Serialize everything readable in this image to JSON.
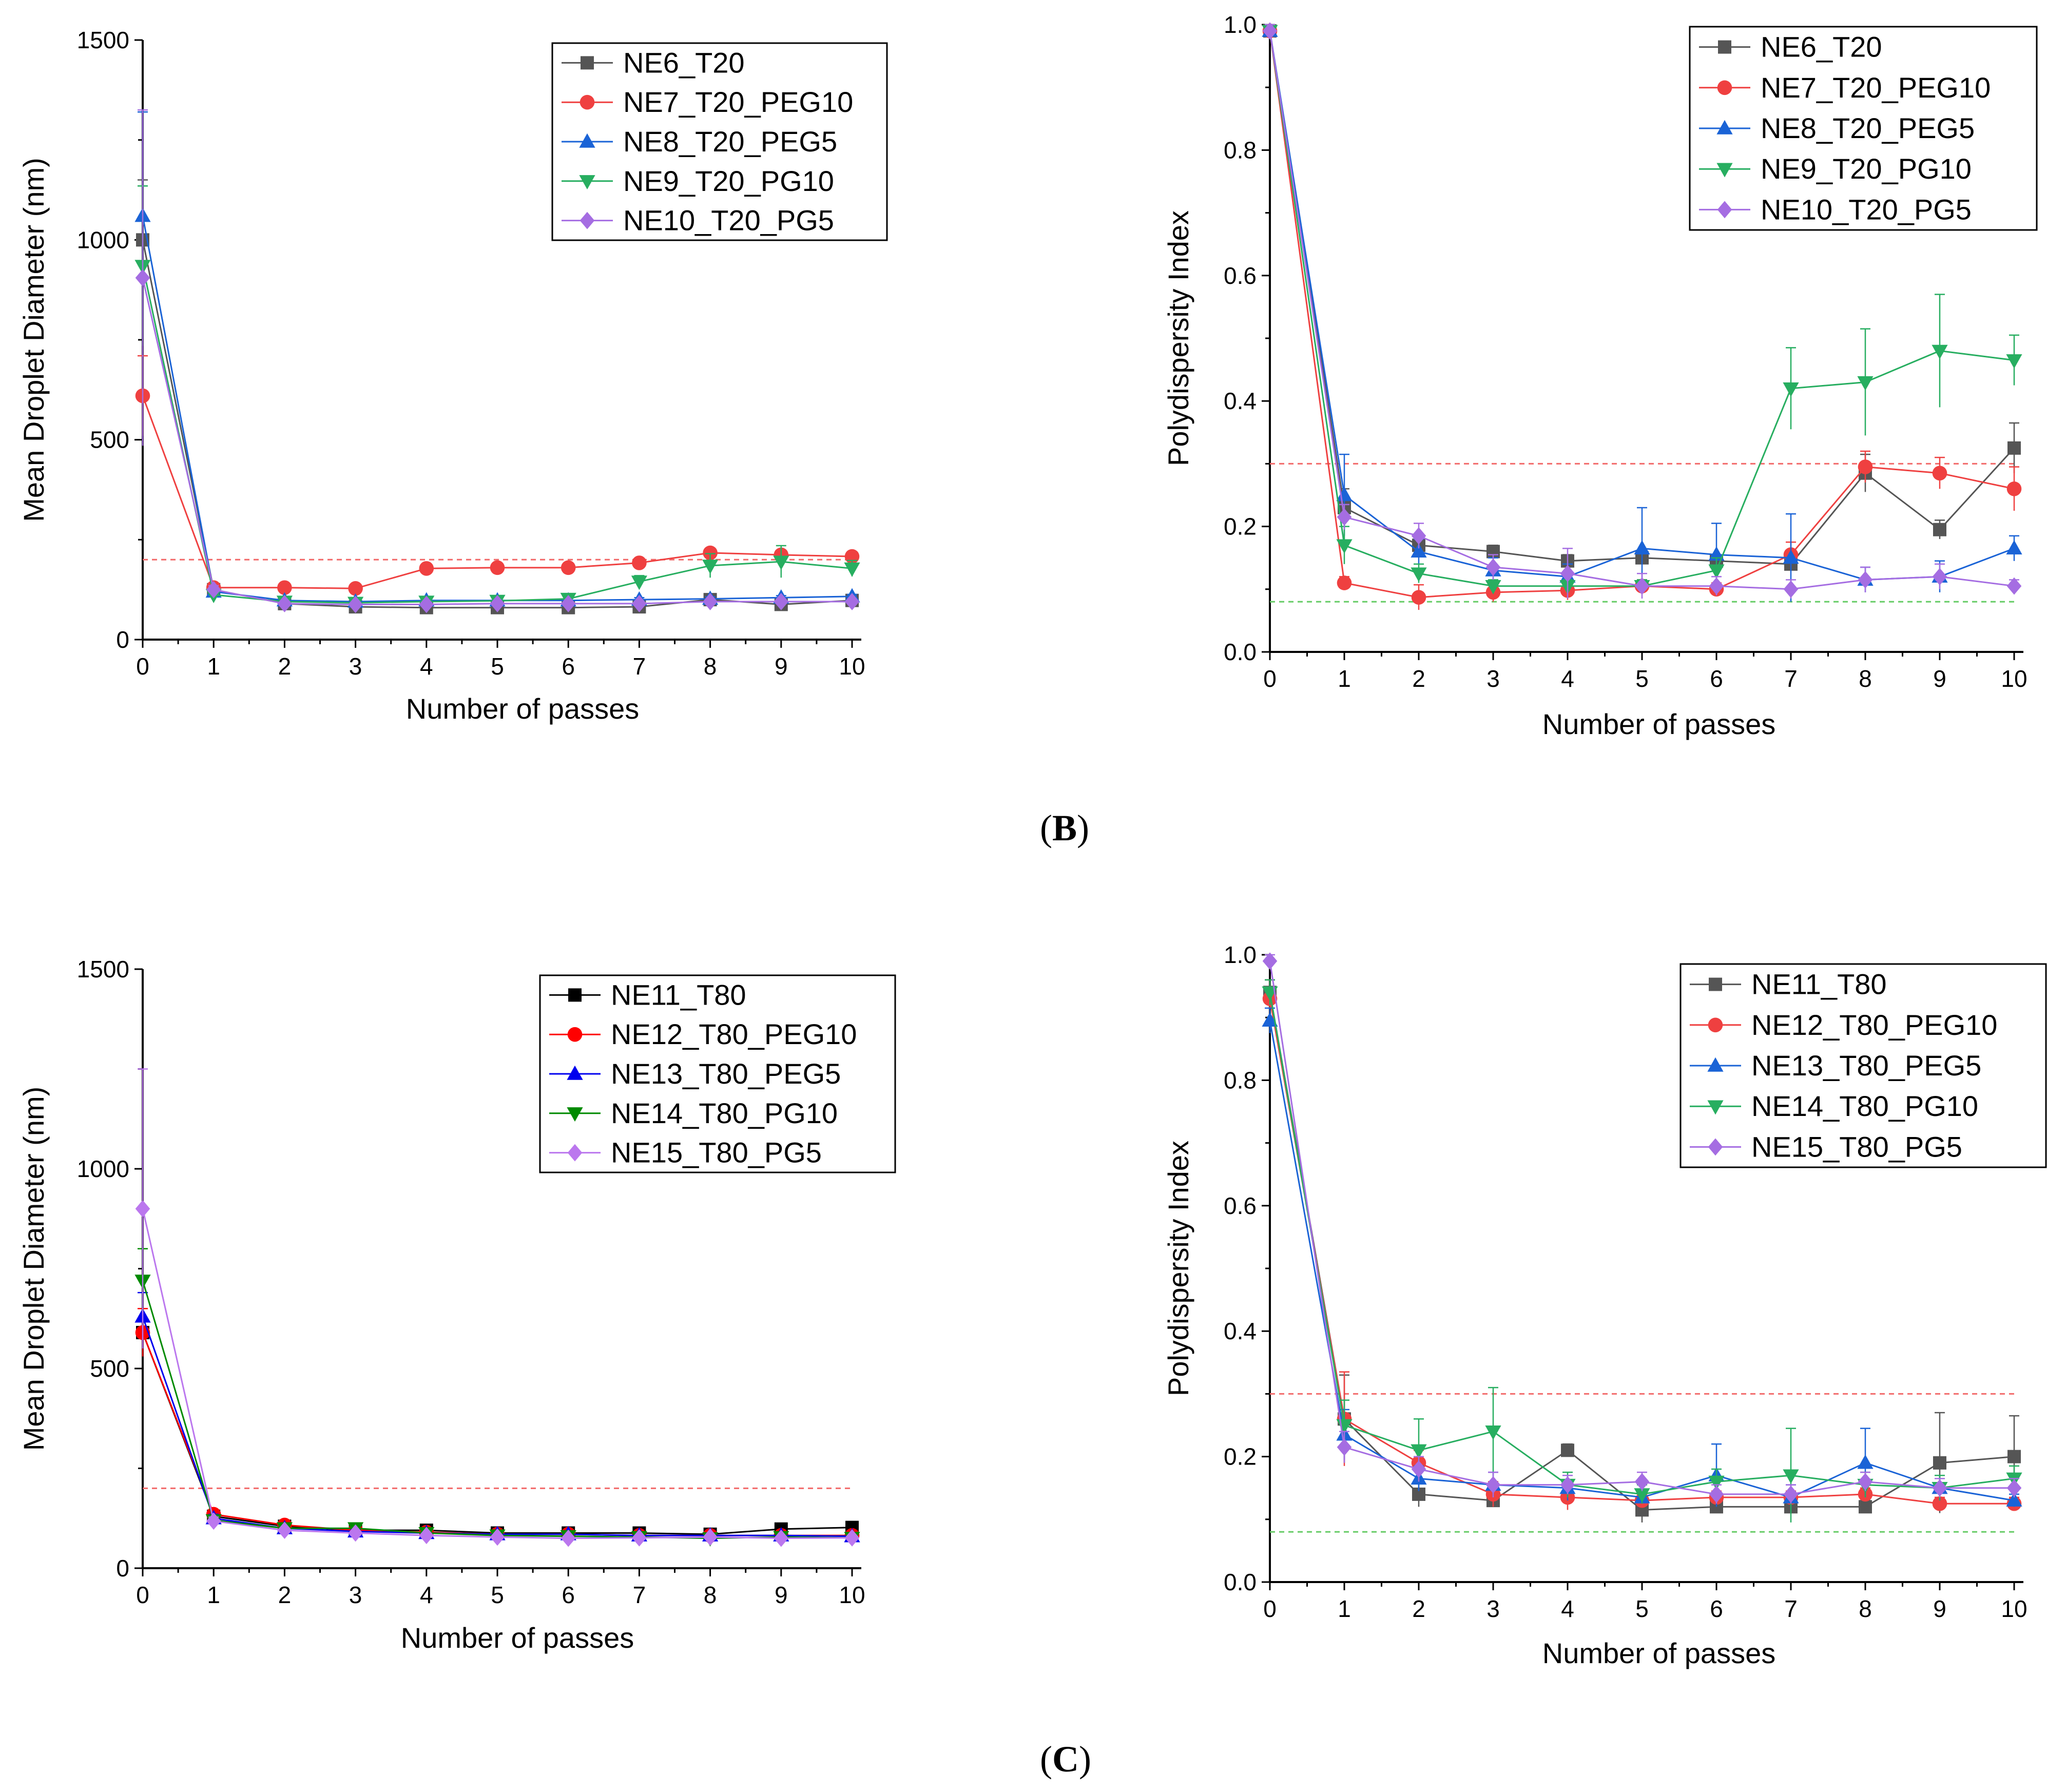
{
  "panel_labels": {
    "b": "B",
    "c": "C"
  },
  "chart_data": [
    {
      "id": "b-left",
      "type": "line",
      "ylabel": "Mean Droplet Diameter (nm)",
      "xlabel": "Number of passes",
      "xlim": [
        0,
        10
      ],
      "ylim": [
        0,
        1500
      ],
      "xticks": [
        0,
        1,
        2,
        3,
        4,
        5,
        6,
        7,
        8,
        9,
        10
      ],
      "yticks": [
        0,
        500,
        1000,
        1500
      ],
      "ytick_labels": [
        "0",
        "500",
        "1000",
        "1500"
      ],
      "reference_lines": [
        {
          "y": 200,
          "color": "#f26b6b"
        }
      ],
      "legend_position": "top-right",
      "x": [
        0,
        1,
        2,
        3,
        4,
        5,
        6,
        7,
        8,
        9,
        10
      ],
      "series": [
        {
          "name": "NE6_T20",
          "color": "#555555",
          "marker": "square",
          "values": [
            1000,
            125,
            90,
            82,
            80,
            80,
            80,
            82,
            100,
            88,
            98
          ],
          "errors": [
            150,
            10,
            5,
            5,
            5,
            5,
            5,
            5,
            5,
            5,
            5
          ]
        },
        {
          "name": "NE7_T20_PEG10",
          "color": "#ef4040",
          "marker": "circle",
          "values": [
            610,
            130,
            130,
            128,
            178,
            180,
            180,
            192,
            217,
            212,
            208
          ],
          "errors": [
            100,
            10,
            8,
            8,
            10,
            10,
            10,
            10,
            10,
            10,
            10
          ]
        },
        {
          "name": "NE8_T20_PEG5",
          "color": "#1a63d6",
          "marker": "triangle-up",
          "values": [
            1060,
            120,
            98,
            95,
            98,
            98,
            98,
            100,
            102,
            105,
            108
          ],
          "errors": [
            260,
            10,
            5,
            5,
            5,
            5,
            5,
            5,
            5,
            5,
            5
          ]
        },
        {
          "name": "NE9_T20_PG10",
          "color": "#27ae60",
          "marker": "triangle-down",
          "values": [
            935,
            112,
            95,
            92,
            95,
            97,
            102,
            145,
            185,
            195,
            178
          ],
          "errors": [
            200,
            10,
            5,
            5,
            5,
            5,
            10,
            15,
            30,
            40,
            20
          ]
        },
        {
          "name": "NE10_T20_PG5",
          "color": "#a56de2",
          "marker": "diamond",
          "values": [
            905,
            125,
            90,
            88,
            88,
            90,
            90,
            90,
            95,
            95,
            95
          ],
          "errors": [
            420,
            10,
            5,
            5,
            5,
            5,
            5,
            5,
            5,
            5,
            5
          ]
        }
      ]
    },
    {
      "id": "b-right",
      "type": "line",
      "ylabel": "Polydispersity Index",
      "xlabel": "Number of passes",
      "xlim": [
        0,
        10
      ],
      "ylim": [
        0,
        1.0
      ],
      "xticks": [
        0,
        1,
        2,
        3,
        4,
        5,
        6,
        7,
        8,
        9,
        10
      ],
      "yticks": [
        0,
        0.2,
        0.4,
        0.6,
        0.8,
        1.0
      ],
      "ytick_labels": [
        "0.0",
        "0.2",
        "0.4",
        "0.6",
        "0.8",
        "1.0"
      ],
      "reference_lines": [
        {
          "y": 0.3,
          "color": "#f26b6b"
        },
        {
          "y": 0.08,
          "color": "#66cc66"
        }
      ],
      "legend_position": "top-right",
      "x": [
        0,
        1,
        2,
        3,
        4,
        5,
        6,
        7,
        8,
        9,
        10
      ],
      "series": [
        {
          "name": "NE6_T20",
          "color": "#555555",
          "marker": "square",
          "values": [
            0.99,
            0.23,
            0.17,
            0.16,
            0.145,
            0.15,
            0.145,
            0.14,
            0.285,
            0.195,
            0.325
          ],
          "errors": [
            0.01,
            0.03,
            0.01,
            0.01,
            0.01,
            0.01,
            0.01,
            0.01,
            0.03,
            0.015,
            0.04
          ]
        },
        {
          "name": "NE7_T20_PEG10",
          "color": "#ef4040",
          "marker": "circle",
          "values": [
            0.99,
            0.11,
            0.087,
            0.095,
            0.098,
            0.105,
            0.1,
            0.155,
            0.295,
            0.285,
            0.26
          ],
          "errors": [
            0.01,
            0.01,
            0.02,
            0.015,
            0.015,
            0.01,
            0.01,
            0.02,
            0.025,
            0.025,
            0.035
          ]
        },
        {
          "name": "NE8_T20_PEG5",
          "color": "#1a63d6",
          "marker": "triangle-up",
          "values": [
            0.99,
            0.25,
            0.16,
            0.13,
            0.12,
            0.165,
            0.155,
            0.15,
            0.115,
            0.12,
            0.165
          ],
          "errors": [
            0.01,
            0.065,
            0.02,
            0.02,
            0.02,
            0.065,
            0.05,
            0.07,
            0.02,
            0.025,
            0.02
          ]
        },
        {
          "name": "NE9_T20_PG10",
          "color": "#27ae60",
          "marker": "triangle-down",
          "values": [
            0.99,
            0.17,
            0.125,
            0.105,
            0.105,
            0.105,
            0.13,
            0.42,
            0.43,
            0.48,
            0.465
          ],
          "errors": [
            0.01,
            0.03,
            0.015,
            0.01,
            0.01,
            0.01,
            0.02,
            0.065,
            0.085,
            0.09,
            0.04
          ]
        },
        {
          "name": "NE10_T20_PG5",
          "color": "#a56de2",
          "marker": "diamond",
          "values": [
            0.99,
            0.215,
            0.185,
            0.135,
            0.125,
            0.105,
            0.105,
            0.1,
            0.115,
            0.12,
            0.105
          ],
          "errors": [
            0.01,
            0.02,
            0.02,
            0.02,
            0.04,
            0.02,
            0.015,
            0.015,
            0.02,
            0.02,
            0.01
          ]
        }
      ]
    },
    {
      "id": "c-left",
      "type": "line",
      "ylabel": "Mean Droplet Diameter (nm)",
      "xlabel": "Number of passes",
      "xlim": [
        0,
        10
      ],
      "ylim": [
        0,
        1500
      ],
      "xticks": [
        0,
        1,
        2,
        3,
        4,
        5,
        6,
        7,
        8,
        9,
        10
      ],
      "yticks": [
        0,
        500,
        1000,
        1500
      ],
      "ytick_labels": [
        "0",
        "500",
        "1000",
        "1500"
      ],
      "reference_lines": [
        {
          "y": 200,
          "color": "#f26b6b"
        }
      ],
      "legend_position": "top-right",
      "x": [
        0,
        1,
        2,
        3,
        4,
        5,
        6,
        7,
        8,
        9,
        10
      ],
      "series": [
        {
          "name": "NE11_T80",
          "color": "#000000",
          "marker": "square",
          "values": [
            590,
            130,
            105,
            95,
            95,
            88,
            88,
            88,
            85,
            98,
            102
          ],
          "errors": [
            60,
            10,
            5,
            5,
            5,
            5,
            5,
            5,
            5,
            5,
            5
          ]
        },
        {
          "name": "NE12_T80_PEG10",
          "color": "#ff0000",
          "marker": "circle",
          "values": [
            590,
            135,
            108,
            95,
            90,
            85,
            85,
            82,
            82,
            82,
            82
          ],
          "errors": [
            60,
            10,
            5,
            5,
            5,
            5,
            5,
            5,
            5,
            5,
            5
          ]
        },
        {
          "name": "NE13_T80_PEG5",
          "color": "#0000ee",
          "marker": "triangle-up",
          "values": [
            630,
            125,
            100,
            92,
            88,
            85,
            85,
            82,
            82,
            82,
            80
          ],
          "errors": [
            60,
            10,
            5,
            5,
            5,
            5,
            5,
            5,
            5,
            5,
            5
          ]
        },
        {
          "name": "NE14_T80_PG10",
          "color": "#008a00",
          "marker": "triangle-down",
          "values": [
            720,
            120,
            100,
            100,
            88,
            82,
            80,
            78,
            75,
            78,
            76
          ],
          "errors": [
            80,
            10,
            5,
            5,
            5,
            5,
            5,
            5,
            5,
            5,
            5
          ]
        },
        {
          "name": "NE15_T80_PG5",
          "color": "#bb77ee",
          "marker": "diamond",
          "values": [
            900,
            118,
            95,
            88,
            82,
            78,
            75,
            76,
            78,
            75,
            76
          ],
          "errors": [
            350,
            10,
            5,
            5,
            5,
            5,
            5,
            5,
            5,
            5,
            5
          ]
        }
      ]
    },
    {
      "id": "c-right",
      "type": "line",
      "ylabel": "Polydispersity Index",
      "xlabel": "Number of passes",
      "xlim": [
        0,
        10
      ],
      "ylim": [
        0,
        1.0
      ],
      "xticks": [
        0,
        1,
        2,
        3,
        4,
        5,
        6,
        7,
        8,
        9,
        10
      ],
      "yticks": [
        0,
        0.2,
        0.4,
        0.6,
        0.8,
        1.0
      ],
      "ytick_labels": [
        "0.0",
        "0.2",
        "0.4",
        "0.6",
        "0.8",
        "1.0"
      ],
      "reference_lines": [
        {
          "y": 0.3,
          "color": "#f26b6b"
        },
        {
          "y": 0.08,
          "color": "#66cc66"
        }
      ],
      "legend_position": "top-right",
      "x": [
        0,
        1,
        2,
        3,
        4,
        5,
        6,
        7,
        8,
        9,
        10
      ],
      "series": [
        {
          "name": "NE11_T80",
          "color": "#555555",
          "marker": "square",
          "values": [
            0.94,
            0.26,
            0.14,
            0.13,
            0.21,
            0.115,
            0.12,
            0.12,
            0.12,
            0.19,
            0.2
          ],
          "errors": [
            0.02,
            0.07,
            0.02,
            0.01,
            0.01,
            0.02,
            0.01,
            0.01,
            0.01,
            0.08,
            0.065
          ]
        },
        {
          "name": "NE12_T80_PEG10",
          "color": "#ef4040",
          "marker": "circle",
          "values": [
            0.93,
            0.26,
            0.19,
            0.14,
            0.135,
            0.13,
            0.135,
            0.135,
            0.14,
            0.125,
            0.125
          ],
          "errors": [
            0.03,
            0.075,
            0.02,
            0.02,
            0.02,
            0.01,
            0.01,
            0.01,
            0.01,
            0.01,
            0.01
          ]
        },
        {
          "name": "NE13_T80_PEG5",
          "color": "#1a63d6",
          "marker": "triangle-up",
          "values": [
            0.895,
            0.235,
            0.165,
            0.155,
            0.15,
            0.135,
            0.17,
            0.135,
            0.19,
            0.15,
            0.13
          ],
          "errors": [
            0.02,
            0.04,
            0.02,
            0.02,
            0.02,
            0.01,
            0.05,
            0.02,
            0.055,
            0.02,
            0.01
          ]
        },
        {
          "name": "NE14_T80_PG10",
          "color": "#27ae60",
          "marker": "triangle-down",
          "values": [
            0.94,
            0.25,
            0.21,
            0.24,
            0.155,
            0.14,
            0.16,
            0.17,
            0.155,
            0.15,
            0.165
          ],
          "errors": [
            0.02,
            0.04,
            0.05,
            0.07,
            0.02,
            0.015,
            0.02,
            0.075,
            0.02,
            0.02,
            0.02
          ]
        },
        {
          "name": "NE15_T80_PG5",
          "color": "#a56de2",
          "marker": "diamond",
          "values": [
            0.99,
            0.215,
            0.18,
            0.155,
            0.155,
            0.16,
            0.14,
            0.14,
            0.16,
            0.15,
            0.15
          ],
          "errors": [
            0.01,
            0.025,
            0.02,
            0.02,
            0.015,
            0.015,
            0.015,
            0.015,
            0.015,
            0.015,
            0.015
          ]
        }
      ]
    }
  ]
}
